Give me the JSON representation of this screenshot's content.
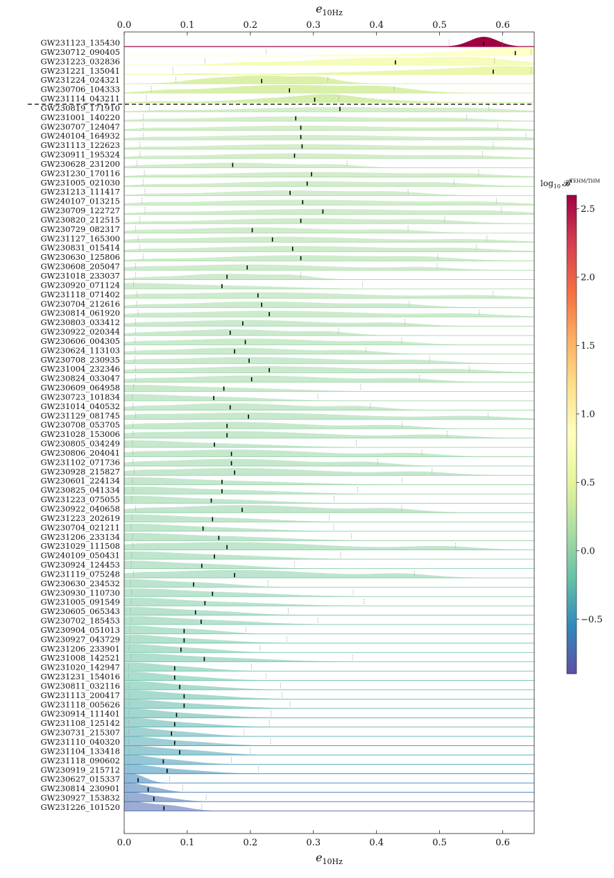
{
  "chart_data": {
    "type": "ridgeline",
    "title": "",
    "xlabel": "e_10Hz",
    "xlabel_sub": "10Hz",
    "xlim": [
      0.0,
      0.65
    ],
    "xticks": [
      0.0,
      0.1,
      0.2,
      0.3,
      0.4,
      0.5,
      0.6
    ],
    "xtick_labels": [
      "0.0",
      "0.1",
      "0.2",
      "0.3",
      "0.4",
      "0.5",
      "0.6"
    ],
    "colorbar": {
      "label": "log₁₀ 𝓑^TEHM/THM",
      "label_main": "log",
      "label_sub": "10",
      "label_sym": "𝓑",
      "label_sup": "TEHM/THM",
      "range": [
        -0.9,
        2.6
      ],
      "ticks": [
        2.5,
        2.0,
        1.5,
        1.0,
        0.5,
        0.0,
        -0.5
      ],
      "tick_labels": [
        "2.5",
        "2.0",
        "1.5",
        "1.0",
        "0.5",
        "0.0",
        "−0.5"
      ],
      "colormap": "Spectral_r",
      "colors": [
        "#5e4fa2",
        "#3288bd",
        "#66c2a5",
        "#abdda4",
        "#e6f598",
        "#ffffbf",
        "#fee08b",
        "#fdae61",
        "#f46d43",
        "#d53e4f",
        "#9e0142"
      ]
    },
    "separator_after_index": 6,
    "events": [
      {
        "name": "GW231123_135430",
        "median": 0.57,
        "lo": 0.515,
        "hi": 0.6,
        "logB": 2.6
      },
      {
        "name": "GW230712_090405",
        "median": 0.62,
        "lo": 0.225,
        "hi": 0.645,
        "logB": 0.85
      },
      {
        "name": "GW231223_032836",
        "median": 0.43,
        "lo": 0.128,
        "hi": 0.587,
        "logB": 0.7
      },
      {
        "name": "GW231221_135041",
        "median": 0.585,
        "lo": 0.077,
        "hi": 0.645,
        "logB": 0.55
      },
      {
        "name": "GW231224_024321",
        "median": 0.218,
        "lo": 0.082,
        "hi": 0.323,
        "logB": 0.4
      },
      {
        "name": "GW230706_104333",
        "median": 0.262,
        "lo": 0.043,
        "hi": 0.428,
        "logB": 0.38
      },
      {
        "name": "GW231114_043211",
        "median": 0.302,
        "lo": 0.035,
        "hi": 0.34,
        "logB": 0.35
      },
      {
        "name": "GW230819_171910",
        "median": 0.342,
        "lo": 0.04,
        "hi": 0.578,
        "logB": 0.2
      },
      {
        "name": "GW231001_140220",
        "median": 0.272,
        "lo": 0.03,
        "hi": 0.543,
        "logB": 0.19
      },
      {
        "name": "GW230707_124047",
        "median": 0.28,
        "lo": 0.03,
        "hi": 0.592,
        "logB": 0.19
      },
      {
        "name": "GW240104_164932",
        "median": 0.28,
        "lo": 0.03,
        "hi": 0.637,
        "logB": 0.18
      },
      {
        "name": "GW231113_122623",
        "median": 0.282,
        "lo": 0.025,
        "hi": 0.585,
        "logB": 0.18
      },
      {
        "name": "GW230911_195324",
        "median": 0.27,
        "lo": 0.025,
        "hi": 0.568,
        "logB": 0.18
      },
      {
        "name": "GW230628_231200",
        "median": 0.172,
        "lo": 0.02,
        "hi": 0.353,
        "logB": 0.17
      },
      {
        "name": "GW231230_170116",
        "median": 0.297,
        "lo": 0.032,
        "hi": 0.562,
        "logB": 0.17
      },
      {
        "name": "GW231005_021030",
        "median": 0.29,
        "lo": 0.03,
        "hi": 0.523,
        "logB": 0.16
      },
      {
        "name": "GW231213_111417",
        "median": 0.263,
        "lo": 0.033,
        "hi": 0.45,
        "logB": 0.16
      },
      {
        "name": "GW240107_013215",
        "median": 0.283,
        "lo": 0.028,
        "hi": 0.59,
        "logB": 0.16
      },
      {
        "name": "GW230709_122727",
        "median": 0.315,
        "lo": 0.033,
        "hi": 0.598,
        "logB": 0.15
      },
      {
        "name": "GW230820_212515",
        "median": 0.28,
        "lo": 0.025,
        "hi": 0.508,
        "logB": 0.15
      },
      {
        "name": "GW230729_082317",
        "median": 0.203,
        "lo": 0.018,
        "hi": 0.45,
        "logB": 0.15
      },
      {
        "name": "GW231127_165300",
        "median": 0.235,
        "lo": 0.022,
        "hi": 0.575,
        "logB": 0.14
      },
      {
        "name": "GW230831_015414",
        "median": 0.267,
        "lo": 0.025,
        "hi": 0.558,
        "logB": 0.14
      },
      {
        "name": "GW230630_125806",
        "median": 0.28,
        "lo": 0.03,
        "hi": 0.497,
        "logB": 0.13
      },
      {
        "name": "GW230608_205047",
        "median": 0.195,
        "lo": 0.018,
        "hi": 0.496,
        "logB": 0.13
      },
      {
        "name": "GW231018_233037",
        "median": 0.163,
        "lo": 0.018,
        "hi": 0.28,
        "logB": 0.12
      },
      {
        "name": "GW230920_071124",
        "median": 0.155,
        "lo": 0.015,
        "hi": 0.378,
        "logB": 0.12
      },
      {
        "name": "GW231118_071402",
        "median": 0.212,
        "lo": 0.02,
        "hi": 0.585,
        "logB": 0.12
      },
      {
        "name": "GW230704_212616",
        "median": 0.218,
        "lo": 0.02,
        "hi": 0.452,
        "logB": 0.11
      },
      {
        "name": "GW230814_061920",
        "median": 0.23,
        "lo": 0.022,
        "hi": 0.563,
        "logB": 0.11
      },
      {
        "name": "GW230803_033412",
        "median": 0.188,
        "lo": 0.018,
        "hi": 0.445,
        "logB": 0.1
      },
      {
        "name": "GW230922_020344",
        "median": 0.168,
        "lo": 0.018,
        "hi": 0.34,
        "logB": 0.1
      },
      {
        "name": "GW230606_004305",
        "median": 0.192,
        "lo": 0.017,
        "hi": 0.44,
        "logB": 0.1
      },
      {
        "name": "GW230624_113103",
        "median": 0.175,
        "lo": 0.017,
        "hi": 0.383,
        "logB": 0.09
      },
      {
        "name": "GW230708_230935",
        "median": 0.198,
        "lo": 0.017,
        "hi": 0.484,
        "logB": 0.09
      },
      {
        "name": "GW231004_232346",
        "median": 0.23,
        "lo": 0.018,
        "hi": 0.547,
        "logB": 0.09
      },
      {
        "name": "GW230824_033047",
        "median": 0.202,
        "lo": 0.018,
        "hi": 0.468,
        "logB": 0.08
      },
      {
        "name": "GW230609_064958",
        "median": 0.158,
        "lo": 0.015,
        "hi": 0.375,
        "logB": 0.08
      },
      {
        "name": "GW230723_101834",
        "median": 0.142,
        "lo": 0.013,
        "hi": 0.307,
        "logB": 0.07
      },
      {
        "name": "GW231014_040532",
        "median": 0.168,
        "lo": 0.014,
        "hi": 0.39,
        "logB": 0.07
      },
      {
        "name": "GW231129_081745",
        "median": 0.197,
        "lo": 0.018,
        "hi": 0.577,
        "logB": 0.06
      },
      {
        "name": "GW230708_053705",
        "median": 0.163,
        "lo": 0.014,
        "hi": 0.44,
        "logB": 0.06
      },
      {
        "name": "GW231028_153006",
        "median": 0.163,
        "lo": 0.014,
        "hi": 0.512,
        "logB": 0.05
      },
      {
        "name": "GW230805_034249",
        "median": 0.143,
        "lo": 0.013,
        "hi": 0.368,
        "logB": 0.05
      },
      {
        "name": "GW230806_204041",
        "median": 0.17,
        "lo": 0.014,
        "hi": 0.472,
        "logB": 0.04
      },
      {
        "name": "GW231102_071736",
        "median": 0.17,
        "lo": 0.014,
        "hi": 0.402,
        "logB": 0.04
      },
      {
        "name": "GW230928_215827",
        "median": 0.175,
        "lo": 0.016,
        "hi": 0.488,
        "logB": 0.03
      },
      {
        "name": "GW230601_224134",
        "median": 0.155,
        "lo": 0.013,
        "hi": 0.44,
        "logB": 0.03
      },
      {
        "name": "GW230825_041334",
        "median": 0.155,
        "lo": 0.014,
        "hi": 0.37,
        "logB": 0.02
      },
      {
        "name": "GW231223_075055",
        "median": 0.138,
        "lo": 0.012,
        "hi": 0.333,
        "logB": 0.02
      },
      {
        "name": "GW230922_040658",
        "median": 0.187,
        "lo": 0.018,
        "hi": 0.44,
        "logB": 0.01
      },
      {
        "name": "GW231223_202619",
        "median": 0.14,
        "lo": 0.012,
        "hi": 0.325,
        "logB": 0.01
      },
      {
        "name": "GW230704_021211",
        "median": 0.125,
        "lo": 0.011,
        "hi": 0.332,
        "logB": 0.0
      },
      {
        "name": "GW231206_233134",
        "median": 0.15,
        "lo": 0.013,
        "hi": 0.36,
        "logB": 0.0
      },
      {
        "name": "GW231029_111508",
        "median": 0.163,
        "lo": 0.014,
        "hi": 0.525,
        "logB": -0.01
      },
      {
        "name": "GW240109_050431",
        "median": 0.143,
        "lo": 0.012,
        "hi": 0.343,
        "logB": -0.02
      },
      {
        "name": "GW230924_124453",
        "median": 0.123,
        "lo": 0.011,
        "hi": 0.27,
        "logB": -0.03
      },
      {
        "name": "GW231119_075248",
        "median": 0.175,
        "lo": 0.015,
        "hi": 0.46,
        "logB": -0.04
      },
      {
        "name": "GW230630_234532",
        "median": 0.11,
        "lo": 0.01,
        "hi": 0.228,
        "logB": -0.05
      },
      {
        "name": "GW230930_110730",
        "median": 0.14,
        "lo": 0.012,
        "hi": 0.363,
        "logB": -0.06
      },
      {
        "name": "GW231005_091549",
        "median": 0.128,
        "lo": 0.011,
        "hi": 0.38,
        "logB": -0.07
      },
      {
        "name": "GW230605_065343",
        "median": 0.113,
        "lo": 0.01,
        "hi": 0.26,
        "logB": -0.08
      },
      {
        "name": "GW230702_185453",
        "median": 0.122,
        "lo": 0.011,
        "hi": 0.307,
        "logB": -0.09
      },
      {
        "name": "GW230904_051013",
        "median": 0.095,
        "lo": 0.009,
        "hi": 0.193,
        "logB": -0.1
      },
      {
        "name": "GW230927_043729",
        "median": 0.095,
        "lo": 0.009,
        "hi": 0.258,
        "logB": -0.12
      },
      {
        "name": "GW231206_233901",
        "median": 0.09,
        "lo": 0.008,
        "hi": 0.215,
        "logB": -0.14
      },
      {
        "name": "GW231008_142521",
        "median": 0.127,
        "lo": 0.011,
        "hi": 0.362,
        "logB": -0.16
      },
      {
        "name": "GW231020_142947",
        "median": 0.08,
        "lo": 0.007,
        "hi": 0.202,
        "logB": -0.18
      },
      {
        "name": "GW231231_154016",
        "median": 0.08,
        "lo": 0.007,
        "hi": 0.225,
        "logB": -0.2
      },
      {
        "name": "GW230811_032116",
        "median": 0.088,
        "lo": 0.008,
        "hi": 0.248,
        "logB": -0.22
      },
      {
        "name": "GW231113_200417",
        "median": 0.095,
        "lo": 0.008,
        "hi": 0.25,
        "logB": -0.24
      },
      {
        "name": "GW231118_005626",
        "median": 0.095,
        "lo": 0.008,
        "hi": 0.263,
        "logB": -0.26
      },
      {
        "name": "GW230914_111401",
        "median": 0.083,
        "lo": 0.007,
        "hi": 0.233,
        "logB": -0.28
      },
      {
        "name": "GW231108_125142",
        "median": 0.08,
        "lo": 0.007,
        "hi": 0.23,
        "logB": -0.3
      },
      {
        "name": "GW230731_215307",
        "median": 0.075,
        "lo": 0.007,
        "hi": 0.19,
        "logB": -0.33
      },
      {
        "name": "GW231110_040320",
        "median": 0.08,
        "lo": 0.007,
        "hi": 0.232,
        "logB": -0.36
      },
      {
        "name": "GW231104_133418",
        "median": 0.088,
        "lo": 0.008,
        "hi": 0.2,
        "logB": -0.4
      },
      {
        "name": "GW231118_090602",
        "median": 0.062,
        "lo": 0.006,
        "hi": 0.17,
        "logB": -0.45
      },
      {
        "name": "GW230919_215712",
        "median": 0.068,
        "lo": 0.006,
        "hi": 0.213,
        "logB": -0.5
      },
      {
        "name": "GW230627_015337",
        "median": 0.022,
        "lo": 0.004,
        "hi": 0.072,
        "logB": -0.6
      },
      {
        "name": "GW230814_230901",
        "median": 0.038,
        "lo": 0.004,
        "hi": 0.093,
        "logB": -0.65
      },
      {
        "name": "GW230927_153832",
        "median": 0.047,
        "lo": 0.005,
        "hi": 0.13,
        "logB": -0.7
      },
      {
        "name": "GW231226_101520",
        "median": 0.063,
        "lo": 0.006,
        "hi": 0.123,
        "logB": -0.75
      }
    ]
  }
}
